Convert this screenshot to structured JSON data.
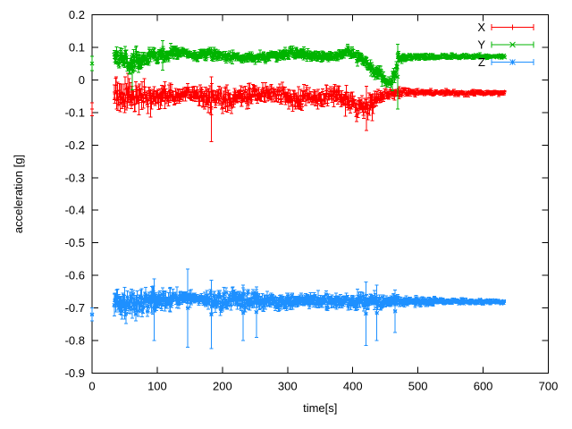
{
  "figure": {
    "background": "#ffffff",
    "border_color": "#000000",
    "text_color": "#000000"
  },
  "chart_data": {
    "type": "line",
    "style": "points-with-errorbars",
    "title": "",
    "xlabel": "time[s]",
    "ylabel": "acceleration [g]",
    "xlim": [
      0,
      700
    ],
    "ylim": [
      -0.9,
      0.2
    ],
    "xticks": [
      0,
      100,
      200,
      300,
      400,
      500,
      600,
      700
    ],
    "yticks": [
      0.2,
      0.1,
      0,
      -0.1,
      -0.2,
      -0.3,
      -0.4,
      -0.5,
      -0.6,
      -0.7,
      -0.8,
      -0.9
    ],
    "grid": false,
    "legend_position": "top-right",
    "sample_interval_s": 1,
    "series": [
      {
        "name": "X",
        "color": "#ff0000",
        "marker": "plus",
        "first_point": {
          "t": 0,
          "v": -0.09,
          "err": 0.02
        },
        "t_range": [
          34,
          633
        ],
        "envelope": [
          [
            34,
            -0.05,
            0.065
          ],
          [
            50,
            -0.06,
            0.065
          ],
          [
            70,
            -0.05,
            0.055
          ],
          [
            90,
            -0.055,
            0.05
          ],
          [
            110,
            -0.05,
            0.045
          ],
          [
            130,
            -0.045,
            0.038
          ],
          [
            150,
            -0.045,
            0.035
          ],
          [
            170,
            -0.05,
            0.042
          ],
          [
            185,
            -0.058,
            0.055
          ],
          [
            200,
            -0.06,
            0.048
          ],
          [
            215,
            -0.068,
            0.048
          ],
          [
            228,
            -0.05,
            0.04
          ],
          [
            245,
            -0.045,
            0.038
          ],
          [
            265,
            -0.042,
            0.036
          ],
          [
            285,
            -0.04,
            0.034
          ],
          [
            300,
            -0.055,
            0.042
          ],
          [
            315,
            -0.065,
            0.042
          ],
          [
            330,
            -0.05,
            0.038
          ],
          [
            345,
            -0.057,
            0.04
          ],
          [
            360,
            -0.05,
            0.038
          ],
          [
            375,
            -0.04,
            0.034
          ],
          [
            390,
            -0.06,
            0.045
          ],
          [
            405,
            -0.088,
            0.048
          ],
          [
            420,
            -0.085,
            0.045
          ],
          [
            435,
            -0.057,
            0.035
          ],
          [
            450,
            -0.045,
            0.028
          ],
          [
            470,
            -0.04,
            0.02
          ],
          [
            500,
            -0.038,
            0.014
          ],
          [
            550,
            -0.04,
            0.013
          ],
          [
            600,
            -0.04,
            0.011
          ],
          [
            633,
            -0.04,
            0.011
          ]
        ],
        "outliers": [
          {
            "t": 183,
            "lo": -0.19,
            "hi": 0.01
          },
          {
            "t": 421,
            "lo": -0.155,
            "hi": -0.02
          }
        ]
      },
      {
        "name": "Y",
        "color": "#00b400",
        "marker": "cross",
        "first_point": {
          "t": 0,
          "v": 0.05,
          "err": 0.022
        },
        "t_range": [
          34,
          633
        ],
        "envelope": [
          [
            34,
            0.065,
            0.04
          ],
          [
            50,
            0.06,
            0.045
          ],
          [
            65,
            0.055,
            0.05
          ],
          [
            80,
            0.07,
            0.035
          ],
          [
            100,
            0.075,
            0.03
          ],
          [
            120,
            0.08,
            0.026
          ],
          [
            140,
            0.085,
            0.024
          ],
          [
            160,
            0.075,
            0.024
          ],
          [
            180,
            0.08,
            0.028
          ],
          [
            200,
            0.075,
            0.024
          ],
          [
            220,
            0.07,
            0.022
          ],
          [
            245,
            0.07,
            0.02
          ],
          [
            270,
            0.07,
            0.02
          ],
          [
            295,
            0.078,
            0.022
          ],
          [
            315,
            0.085,
            0.024
          ],
          [
            335,
            0.074,
            0.02
          ],
          [
            355,
            0.07,
            0.02
          ],
          [
            375,
            0.075,
            0.02
          ],
          [
            390,
            0.085,
            0.026
          ],
          [
            402,
            0.078,
            0.024
          ],
          [
            415,
            0.06,
            0.03
          ],
          [
            430,
            0.038,
            0.034
          ],
          [
            442,
            0.015,
            0.036
          ],
          [
            452,
            -0.005,
            0.03
          ],
          [
            458,
            -0.012,
            0.028
          ],
          [
            464,
            0.02,
            0.035
          ],
          [
            470,
            0.068,
            0.022
          ],
          [
            500,
            0.07,
            0.012
          ],
          [
            550,
            0.072,
            0.011
          ],
          [
            600,
            0.072,
            0.01
          ],
          [
            633,
            0.072,
            0.01
          ]
        ],
        "outliers": [
          {
            "t": 62,
            "lo": -0.03,
            "hi": 0.08
          },
          {
            "t": 108,
            "lo": 0.03,
            "hi": 0.12
          },
          {
            "t": 469,
            "lo": -0.09,
            "hi": 0.11
          }
        ]
      },
      {
        "name": "Z",
        "color": "#1e90ff",
        "marker": "star",
        "first_point": {
          "t": 0,
          "v": -0.72,
          "err": 0.02
        },
        "t_range": [
          34,
          632
        ],
        "envelope": [
          [
            34,
            -0.68,
            0.055
          ],
          [
            50,
            -0.69,
            0.06
          ],
          [
            65,
            -0.685,
            0.058
          ],
          [
            80,
            -0.68,
            0.055
          ],
          [
            95,
            -0.68,
            0.05
          ],
          [
            110,
            -0.675,
            0.045
          ],
          [
            130,
            -0.675,
            0.035
          ],
          [
            150,
            -0.67,
            0.026
          ],
          [
            165,
            -0.67,
            0.022
          ],
          [
            180,
            -0.675,
            0.04
          ],
          [
            200,
            -0.68,
            0.045
          ],
          [
            220,
            -0.676,
            0.044
          ],
          [
            240,
            -0.676,
            0.04
          ],
          [
            260,
            -0.68,
            0.035
          ],
          [
            280,
            -0.676,
            0.032
          ],
          [
            300,
            -0.68,
            0.035
          ],
          [
            320,
            -0.68,
            0.03
          ],
          [
            340,
            -0.676,
            0.03
          ],
          [
            360,
            -0.68,
            0.034
          ],
          [
            380,
            -0.676,
            0.03
          ],
          [
            400,
            -0.68,
            0.034
          ],
          [
            420,
            -0.68,
            0.038
          ],
          [
            440,
            -0.68,
            0.03
          ],
          [
            460,
            -0.68,
            0.026
          ],
          [
            480,
            -0.68,
            0.022
          ],
          [
            500,
            -0.68,
            0.019
          ],
          [
            530,
            -0.68,
            0.015
          ],
          [
            560,
            -0.68,
            0.013
          ],
          [
            600,
            -0.681,
            0.011
          ],
          [
            632,
            -0.681,
            0.01
          ]
        ],
        "outliers": [
          {
            "t": 95,
            "lo": -0.8,
            "hi": -0.61
          },
          {
            "t": 147,
            "lo": -0.82,
            "hi": -0.58
          },
          {
            "t": 183,
            "lo": -0.825,
            "hi": -0.615
          },
          {
            "t": 232,
            "lo": -0.8,
            "hi": -0.63
          },
          {
            "t": 252,
            "lo": -0.79,
            "hi": -0.635
          },
          {
            "t": 420,
            "lo": -0.815,
            "hi": -0.62
          },
          {
            "t": 437,
            "lo": -0.8,
            "hi": -0.63
          },
          {
            "t": 465,
            "lo": -0.775,
            "hi": -0.645
          }
        ]
      }
    ]
  }
}
